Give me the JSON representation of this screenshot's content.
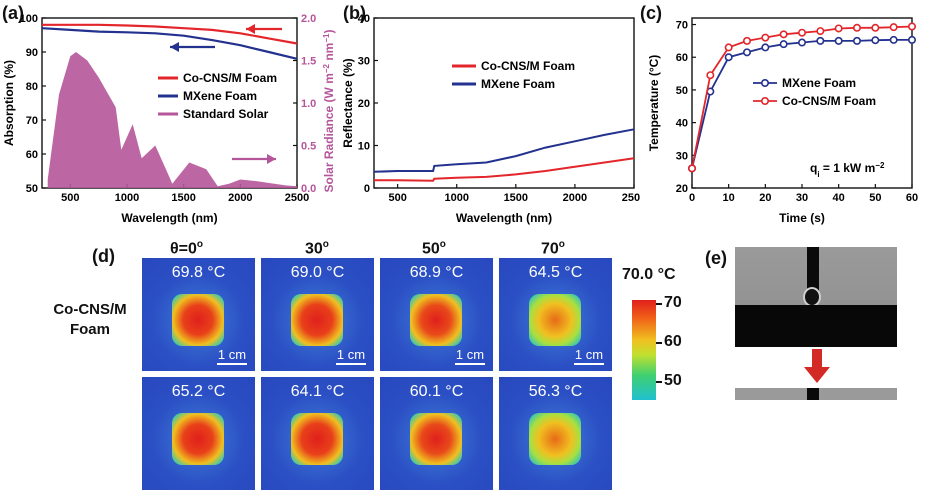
{
  "panels": {
    "a": {
      "label": "(a)",
      "chart_data": {
        "type": "line",
        "xlabel": "Wavelength (nm)",
        "ylabel_left": "Absorption (%)",
        "ylabel_right_parts": [
          "Solar Radiance (W m",
          "−2",
          " nm",
          "−1",
          ")"
        ],
        "xlim": [
          250,
          2500
        ],
        "ylim_left": [
          50,
          100
        ],
        "ylim_right": [
          0.0,
          2.0
        ],
        "x_ticks": [
          "500",
          "1000",
          "1500",
          "2000",
          "2500"
        ],
        "y_ticks_left": [
          "50",
          "60",
          "70",
          "80",
          "90",
          "100"
        ],
        "y_ticks_right": [
          "0.0",
          "0.5",
          "1.0",
          "1.5",
          "2.0"
        ],
        "series": [
          {
            "name": "Co-CNS/M Foam",
            "color": "#e3262b",
            "x": [
              250,
              500,
              750,
              1000,
              1250,
              1500,
              1750,
              2000,
              2250,
              2500
            ],
            "y": [
              98,
              98,
              98,
              97.8,
              97.5,
              97,
              96.5,
              95.5,
              94,
              92.5
            ]
          },
          {
            "name": "MXene Foam",
            "color": "#23318f",
            "x": [
              250,
              500,
              750,
              1000,
              1250,
              1500,
              1750,
              2000,
              2250,
              2500
            ],
            "y": [
              97,
              96.5,
              96,
              95.8,
              95.5,
              94.8,
              93.5,
              92,
              90,
              88
            ]
          },
          {
            "name": "Standard Solar",
            "color": "#b5559a",
            "x": [
              300,
              400,
              500,
              550,
              650,
              750,
              900,
              950,
              1050,
              1130,
              1250,
              1350,
              1400,
              1550,
              1700,
              1800,
              1900,
              2000,
              2150,
              2300,
              2400,
              2500
            ],
            "y_right": [
              0.1,
              1.1,
              1.55,
              1.6,
              1.5,
              1.3,
              0.95,
              0.45,
              0.75,
              0.35,
              0.5,
              0.2,
              0.05,
              0.3,
              0.22,
              0.02,
              0.05,
              0.1,
              0.08,
              0.05,
              0.03,
              0.02
            ]
          }
        ],
        "legend": [
          "Co-CNS/M Foam",
          "MXene Foam",
          "Standard Solar"
        ]
      }
    },
    "b": {
      "label": "(b)",
      "chart_data": {
        "type": "line",
        "xlabel": "Wavelength (nm)",
        "ylabel": "Reflectance (%)",
        "xlim": [
          300,
          2500
        ],
        "ylim": [
          0,
          40
        ],
        "x_ticks": [
          "500",
          "1000",
          "1500",
          "2000",
          "2500"
        ],
        "y_ticks": [
          "0",
          "10",
          "20",
          "30",
          "40"
        ],
        "series": [
          {
            "name": "Co-CNS/M Foam",
            "color": "#e3262b",
            "x": [
              300,
              500,
              800,
              810,
              1000,
              1250,
              1500,
              1750,
              2000,
              2250,
              2500
            ],
            "y": [
              1.8,
              1.8,
              1.7,
              2.2,
              2.4,
              2.6,
              3.2,
              4.0,
              5.0,
              6.0,
              7.0
            ]
          },
          {
            "name": "MXene Foam",
            "color": "#23318f",
            "x": [
              300,
              500,
              800,
              810,
              1000,
              1250,
              1500,
              1750,
              2000,
              2250,
              2500
            ],
            "y": [
              3.8,
              4.0,
              4.0,
              5.2,
              5.6,
              6.0,
              7.5,
              9.5,
              11,
              12.5,
              13.8
            ]
          }
        ],
        "legend": [
          "Co-CNS/M Foam",
          "MXene Foam"
        ]
      }
    },
    "c": {
      "label": "(c)",
      "chart_data": {
        "type": "line",
        "xlabel": "Time (s)",
        "ylabel": "Temperature (°C)",
        "xlim": [
          0,
          60
        ],
        "ylim": [
          20,
          72
        ],
        "x_ticks": [
          "0",
          "10",
          "20",
          "30",
          "40",
          "50",
          "60"
        ],
        "y_ticks": [
          "20",
          "30",
          "40",
          "50",
          "60",
          "70"
        ],
        "annotation": "q",
        "annotation_sub": "i",
        "annotation_rest": " = 1 kW m",
        "annotation_sup": "−2",
        "series": [
          {
            "name": "MXene Foam",
            "color": "#23318f",
            "x": [
              0,
              5,
              10,
              15,
              20,
              25,
              30,
              35,
              40,
              45,
              50,
              55,
              60
            ],
            "y": [
              26,
              49.5,
              60,
              61.5,
              63,
              64,
              64.5,
              65,
              65,
              65,
              65.2,
              65.3,
              65.3
            ]
          },
          {
            "name": "Co-CNS/M Foam",
            "color": "#e3262b",
            "x": [
              0,
              5,
              10,
              15,
              20,
              25,
              30,
              35,
              40,
              45,
              50,
              55,
              60
            ],
            "y": [
              26,
              54.5,
              63,
              65,
              66,
              67,
              67.5,
              68,
              68.8,
              69,
              69,
              69.2,
              69.4
            ]
          }
        ],
        "legend": [
          "MXene Foam",
          "Co-CNS/M Foam"
        ]
      }
    },
    "d": {
      "label": "(d)",
      "angles": [
        "θ=0",
        "30",
        "50",
        "70"
      ],
      "degree_mark": "o",
      "row1_label_line1": "Co-CNS/M",
      "row1_label_line2": "Foam",
      "row1_temps": [
        "69.8 °C",
        "69.0 °C",
        "68.9 °C",
        "64.5 °C"
      ],
      "row2_temps": [
        "65.2 °C",
        "64.1 °C",
        "60.1 °C",
        "56.3 °C"
      ],
      "scale_bar": "1 cm",
      "colorbar_max_label": "70.0 °C",
      "colorbar_ticks": [
        "70",
        "60",
        "50"
      ],
      "colors": {
        "bg": "#2b4fc4",
        "hot": "#e0201c",
        "mid": "#f0e020",
        "cool": "#20c0c0"
      }
    },
    "e": {
      "label": "(e)",
      "arrow_color": "#d42a26"
    }
  }
}
